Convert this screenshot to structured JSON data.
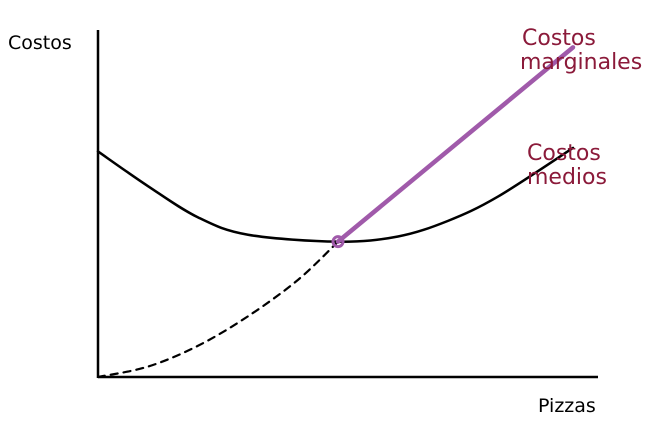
{
  "chart_data": {
    "type": "line",
    "title": "",
    "xlabel": "Pizzas",
    "ylabel": "Costos",
    "xlim": [
      0,
      10
    ],
    "ylim": [
      0,
      10
    ],
    "grid": false,
    "ticks": false,
    "colors": {
      "axis": "#000000",
      "average_cost": "#000000",
      "marginal_cost": "#A05AAA",
      "label_text": "#8B1A3A"
    },
    "series": [
      {
        "name": "Costos medios",
        "label_lines": [
          "Costos",
          "medios"
        ],
        "style": "solid",
        "points": [
          [
            0,
            6.5
          ],
          [
            1,
            5.5
          ],
          [
            2,
            4.6
          ],
          [
            3,
            4.1
          ],
          [
            4.8,
            3.9
          ],
          [
            6,
            4.05
          ],
          [
            7,
            4.5
          ],
          [
            8,
            5.2
          ],
          [
            9.5,
            6.6
          ]
        ]
      },
      {
        "name": "Costos marginales",
        "label_lines": [
          "Costos",
          "marginales"
        ],
        "style": "dashed-then-solid",
        "dashed_points": [
          [
            0,
            0
          ],
          [
            1,
            0.3
          ],
          [
            2,
            0.9
          ],
          [
            3,
            1.75
          ],
          [
            4,
            2.8
          ],
          [
            4.8,
            3.9
          ]
        ],
        "solid_points": [
          [
            4.8,
            3.9
          ],
          [
            9.5,
            9.5
          ]
        ]
      }
    ],
    "annotations": [
      {
        "type": "marker",
        "x": 4.8,
        "y": 3.9,
        "description": "intersection of marginal and average cost"
      }
    ]
  }
}
